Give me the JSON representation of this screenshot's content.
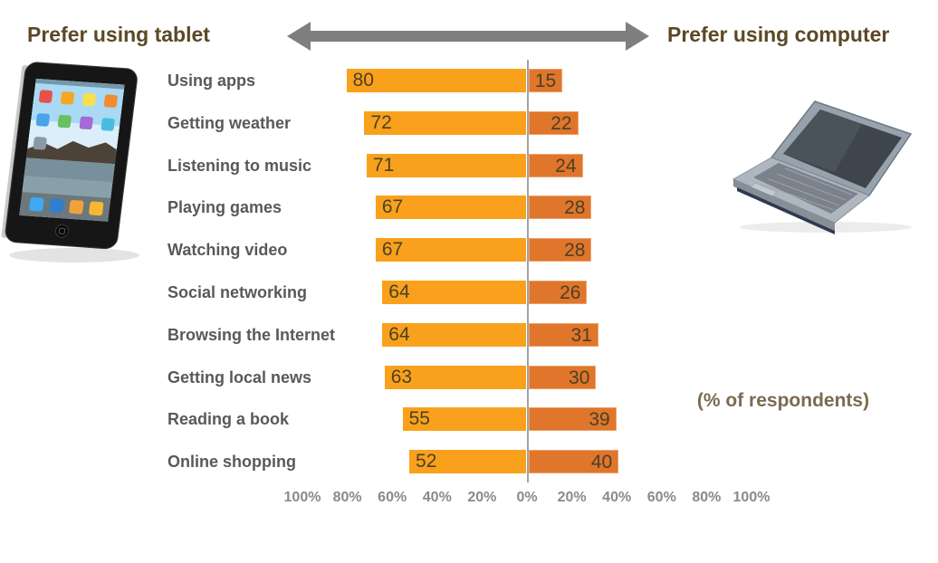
{
  "header": {
    "left_title": "Prefer using tablet",
    "right_title": "Prefer using computer"
  },
  "chart_data": {
    "type": "bar",
    "subtype": "diverging-horizontal",
    "categories": [
      "Using apps",
      "Getting weather",
      "Listening to music",
      "Playing games",
      "Watching video",
      "Social networking",
      "Browsing the Internet",
      "Getting local news",
      "Reading a book",
      "Online shopping"
    ],
    "series": [
      {
        "name": "Prefer using tablet",
        "side": "left",
        "color": "#f9a11c",
        "values": [
          80,
          72,
          71,
          67,
          67,
          64,
          64,
          63,
          55,
          52
        ]
      },
      {
        "name": "Prefer using computer",
        "side": "right",
        "color": "#e0752c",
        "values": [
          15,
          22,
          24,
          28,
          28,
          26,
          31,
          30,
          39,
          40
        ]
      }
    ],
    "axis_ticks": [
      "100%",
      "80%",
      "60%",
      "40%",
      "20%",
      "0%",
      "20%",
      "40%",
      "60%",
      "80%",
      "100%"
    ],
    "axis_range_percent": [
      -100,
      100
    ],
    "unit_note": "(% of respondents)",
    "legend_position": "top (as directional arrow labels)",
    "grid": false
  },
  "images": {
    "tablet_alt": "tablet (iPad) photo",
    "laptop_alt": "laptop computer photo"
  },
  "colors": {
    "tablet_bar": "#f9a11c",
    "computer_bar": "#e0752c",
    "title_text": "#5c4826",
    "category_label": "#595959",
    "value_label": "#4a4124",
    "axis_label": "#8a8a8a",
    "arrow": "#7f7f7f",
    "center_line": "#a3a3a3"
  }
}
